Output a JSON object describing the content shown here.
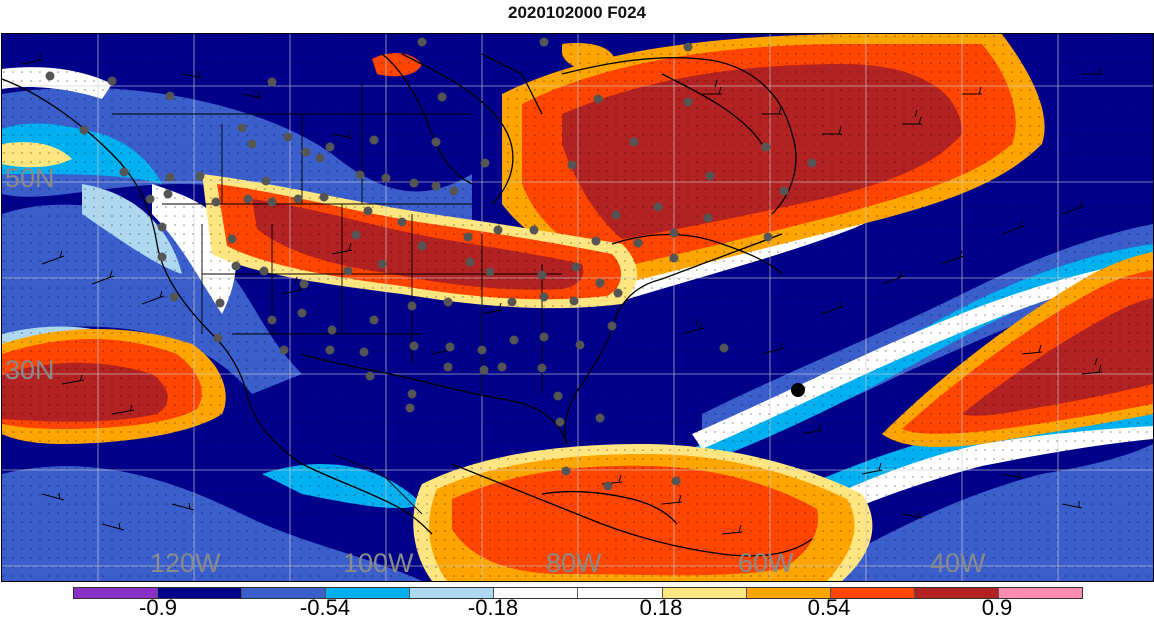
{
  "title": "2020102000 F024",
  "lat_labels": [
    "50N",
    "30N"
  ],
  "lon_labels": [
    "120W",
    "100W",
    "80W",
    "60W",
    "40W"
  ],
  "colorbar": {
    "colors": [
      "#8b2fc9",
      "#00008b",
      "#3a5fcd",
      "#00b0f0",
      "#aed8f0",
      "#ffffff",
      "#ffffff",
      "#ffe680",
      "#ffa500",
      "#ff4500",
      "#b22222",
      "#ff8cb4"
    ],
    "tick_labels": [
      "-0.9",
      "-0.54",
      "-0.18",
      "0.18",
      "0.54",
      "0.9"
    ]
  }
}
